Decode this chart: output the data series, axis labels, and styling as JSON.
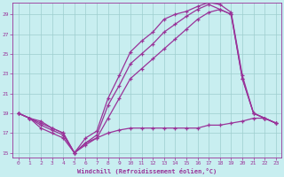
{
  "xlabel": "Windchill (Refroidissement éolien,°C)",
  "background_color": "#c8eef0",
  "grid_color": "#9ecece",
  "line_color": "#993399",
  "xlim": [
    -0.5,
    23.5
  ],
  "ylim": [
    14.5,
    30.2
  ],
  "yticks": [
    15,
    17,
    19,
    21,
    23,
    25,
    27,
    29
  ],
  "xticks": [
    0,
    1,
    2,
    3,
    4,
    5,
    6,
    7,
    8,
    9,
    10,
    11,
    12,
    13,
    14,
    15,
    16,
    17,
    18,
    19,
    20,
    21,
    22,
    23
  ],
  "series": [
    {
      "x": [
        0,
        1,
        2,
        3,
        4,
        5,
        6,
        7,
        8,
        9,
        10,
        11,
        12,
        13,
        14,
        15,
        16,
        17,
        18,
        19,
        20,
        21,
        22,
        23
      ],
      "y": [
        19,
        18.5,
        18.2,
        17.5,
        17.0,
        15.0,
        16.5,
        17.2,
        20.5,
        22.8,
        25.2,
        26.3,
        27.2,
        28.5,
        29.0,
        29.3,
        29.8,
        30.2,
        30.0,
        29.2,
        22.8,
        19.0,
        18.5,
        18.0
      ]
    },
    {
      "x": [
        0,
        1,
        2,
        3,
        4,
        5,
        6,
        7,
        8,
        9,
        10,
        11,
        12,
        13,
        14,
        15,
        16,
        17,
        18,
        19,
        20,
        21,
        22,
        23
      ],
      "y": [
        19,
        18.5,
        18.0,
        17.5,
        17.0,
        15.0,
        16.0,
        16.8,
        19.8,
        21.8,
        24.0,
        25.0,
        26.0,
        27.2,
        28.0,
        28.8,
        29.5,
        30.0,
        29.5,
        29.0,
        22.5,
        19.0,
        18.5,
        18.0
      ]
    },
    {
      "x": [
        0,
        1,
        2,
        3,
        4,
        5,
        6,
        7,
        8,
        9,
        10,
        11,
        12,
        13,
        14,
        15,
        16,
        17,
        18,
        19,
        20,
        21,
        22,
        23
      ],
      "y": [
        19,
        18.5,
        17.8,
        17.3,
        16.8,
        15.0,
        16.0,
        16.5,
        18.5,
        20.5,
        22.5,
        23.5,
        24.5,
        25.5,
        26.5,
        27.5,
        28.5,
        29.2,
        29.5,
        29.0,
        22.5,
        19.0,
        18.5,
        18.0
      ]
    },
    {
      "x": [
        0,
        1,
        2,
        3,
        4,
        5,
        6,
        7,
        8,
        9,
        10,
        11,
        12,
        13,
        14,
        15,
        16,
        17,
        18,
        19,
        20,
        21,
        22,
        23
      ],
      "y": [
        19,
        18.5,
        17.5,
        17.0,
        16.5,
        15.0,
        15.8,
        16.5,
        17.0,
        17.3,
        17.5,
        17.5,
        17.5,
        17.5,
        17.5,
        17.5,
        17.5,
        17.8,
        17.8,
        18.0,
        18.2,
        18.5,
        18.5,
        18.0
      ]
    }
  ]
}
